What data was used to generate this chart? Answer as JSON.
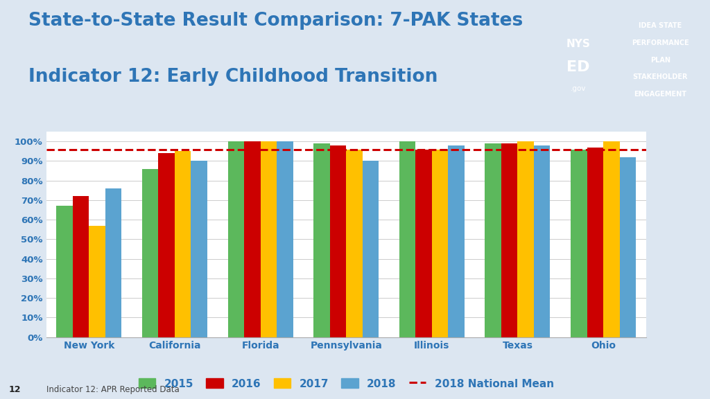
{
  "title_line1": "State-to-State Result Comparison: 7-PAK States",
  "title_line2": "Indicator 12: Early Childhood Transition",
  "categories": [
    "New York",
    "California",
    "Florida",
    "Pennsylvania",
    "Illinois",
    "Texas",
    "Ohio"
  ],
  "series": {
    "2015": [
      67,
      86,
      100,
      99,
      100,
      99,
      96
    ],
    "2016": [
      72,
      94,
      100,
      98,
      96,
      99,
      97
    ],
    "2017": [
      57,
      95,
      100,
      96,
      96,
      100,
      100
    ],
    "2018": [
      76,
      90,
      100,
      90,
      98,
      98,
      92
    ]
  },
  "colors": {
    "2015": "#5CB85C",
    "2016": "#CC0000",
    "2017": "#FFC000",
    "2018": "#5BA3D0"
  },
  "national_mean_2018": 96,
  "national_mean_color": "#CC0000",
  "ylim_max": 105,
  "yticks": [
    0,
    10,
    20,
    30,
    40,
    50,
    60,
    70,
    80,
    90,
    100
  ],
  "background_color": "#DCE6F1",
  "plot_bg_color": "#FFFFFF",
  "title_color": "#2E75B6",
  "axis_label_color": "#2E75B6",
  "footer_bg": "#C9D6E8",
  "footer_text_color": "#444444",
  "footer_text": "Indicator 12: APR Reported Data",
  "page_number": "12",
  "logo_dark_bg": "#0D1F40",
  "logo_blue_bg": "#2E75B6",
  "logo_right_bg": "#0D1F40"
}
